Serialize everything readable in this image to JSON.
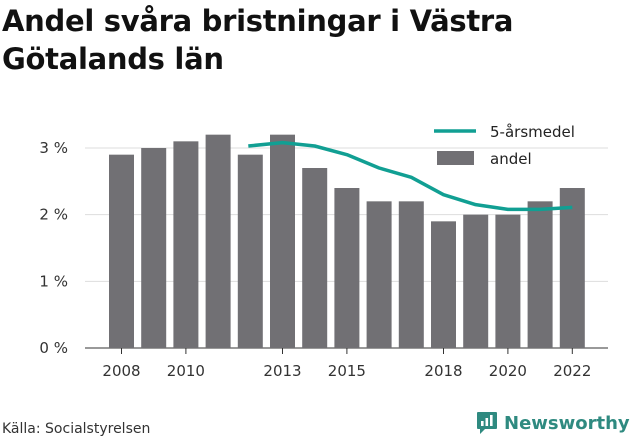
{
  "title": "Andel svåra bristningar i Västra Götalands län",
  "source": "Källa: Socialstyrelsen",
  "brand": {
    "name": "Newsworthy",
    "icon": "newsworthy-logo-icon"
  },
  "colors": {
    "bars": "#717074",
    "line": "#119f93",
    "grid": "#dddddd",
    "brand": "#2f8a80"
  },
  "chart_data": {
    "type": "bar",
    "title": "Andel svåra bristningar i Västra Götalands län",
    "xlabel": "",
    "ylabel": "",
    "ylim": [
      0,
      3.3
    ],
    "yticks": [
      0,
      1,
      2,
      3
    ],
    "ytick_labels": [
      "0 %",
      "1 %",
      "2 %",
      "3 %"
    ],
    "xtick_labels": [
      "2008",
      "2010",
      "2013",
      "2015",
      "2018",
      "2020",
      "2022"
    ],
    "grid": true,
    "legend": "top-right",
    "categories": [
      2008,
      2009,
      2010,
      2011,
      2012,
      2013,
      2014,
      2015,
      2016,
      2017,
      2018,
      2019,
      2020,
      2021,
      2022
    ],
    "series": [
      {
        "name": "andel",
        "type": "bar",
        "values": [
          2.9,
          3.0,
          3.1,
          3.2,
          2.9,
          3.2,
          2.7,
          2.4,
          2.2,
          2.2,
          1.9,
          2.0,
          2.0,
          2.2,
          2.4
        ]
      },
      {
        "name": "5-årsmedel",
        "type": "line",
        "values": [
          null,
          null,
          null,
          null,
          3.03,
          3.08,
          3.03,
          2.9,
          2.7,
          2.56,
          2.3,
          2.15,
          2.08,
          2.08,
          2.11
        ]
      }
    ]
  }
}
